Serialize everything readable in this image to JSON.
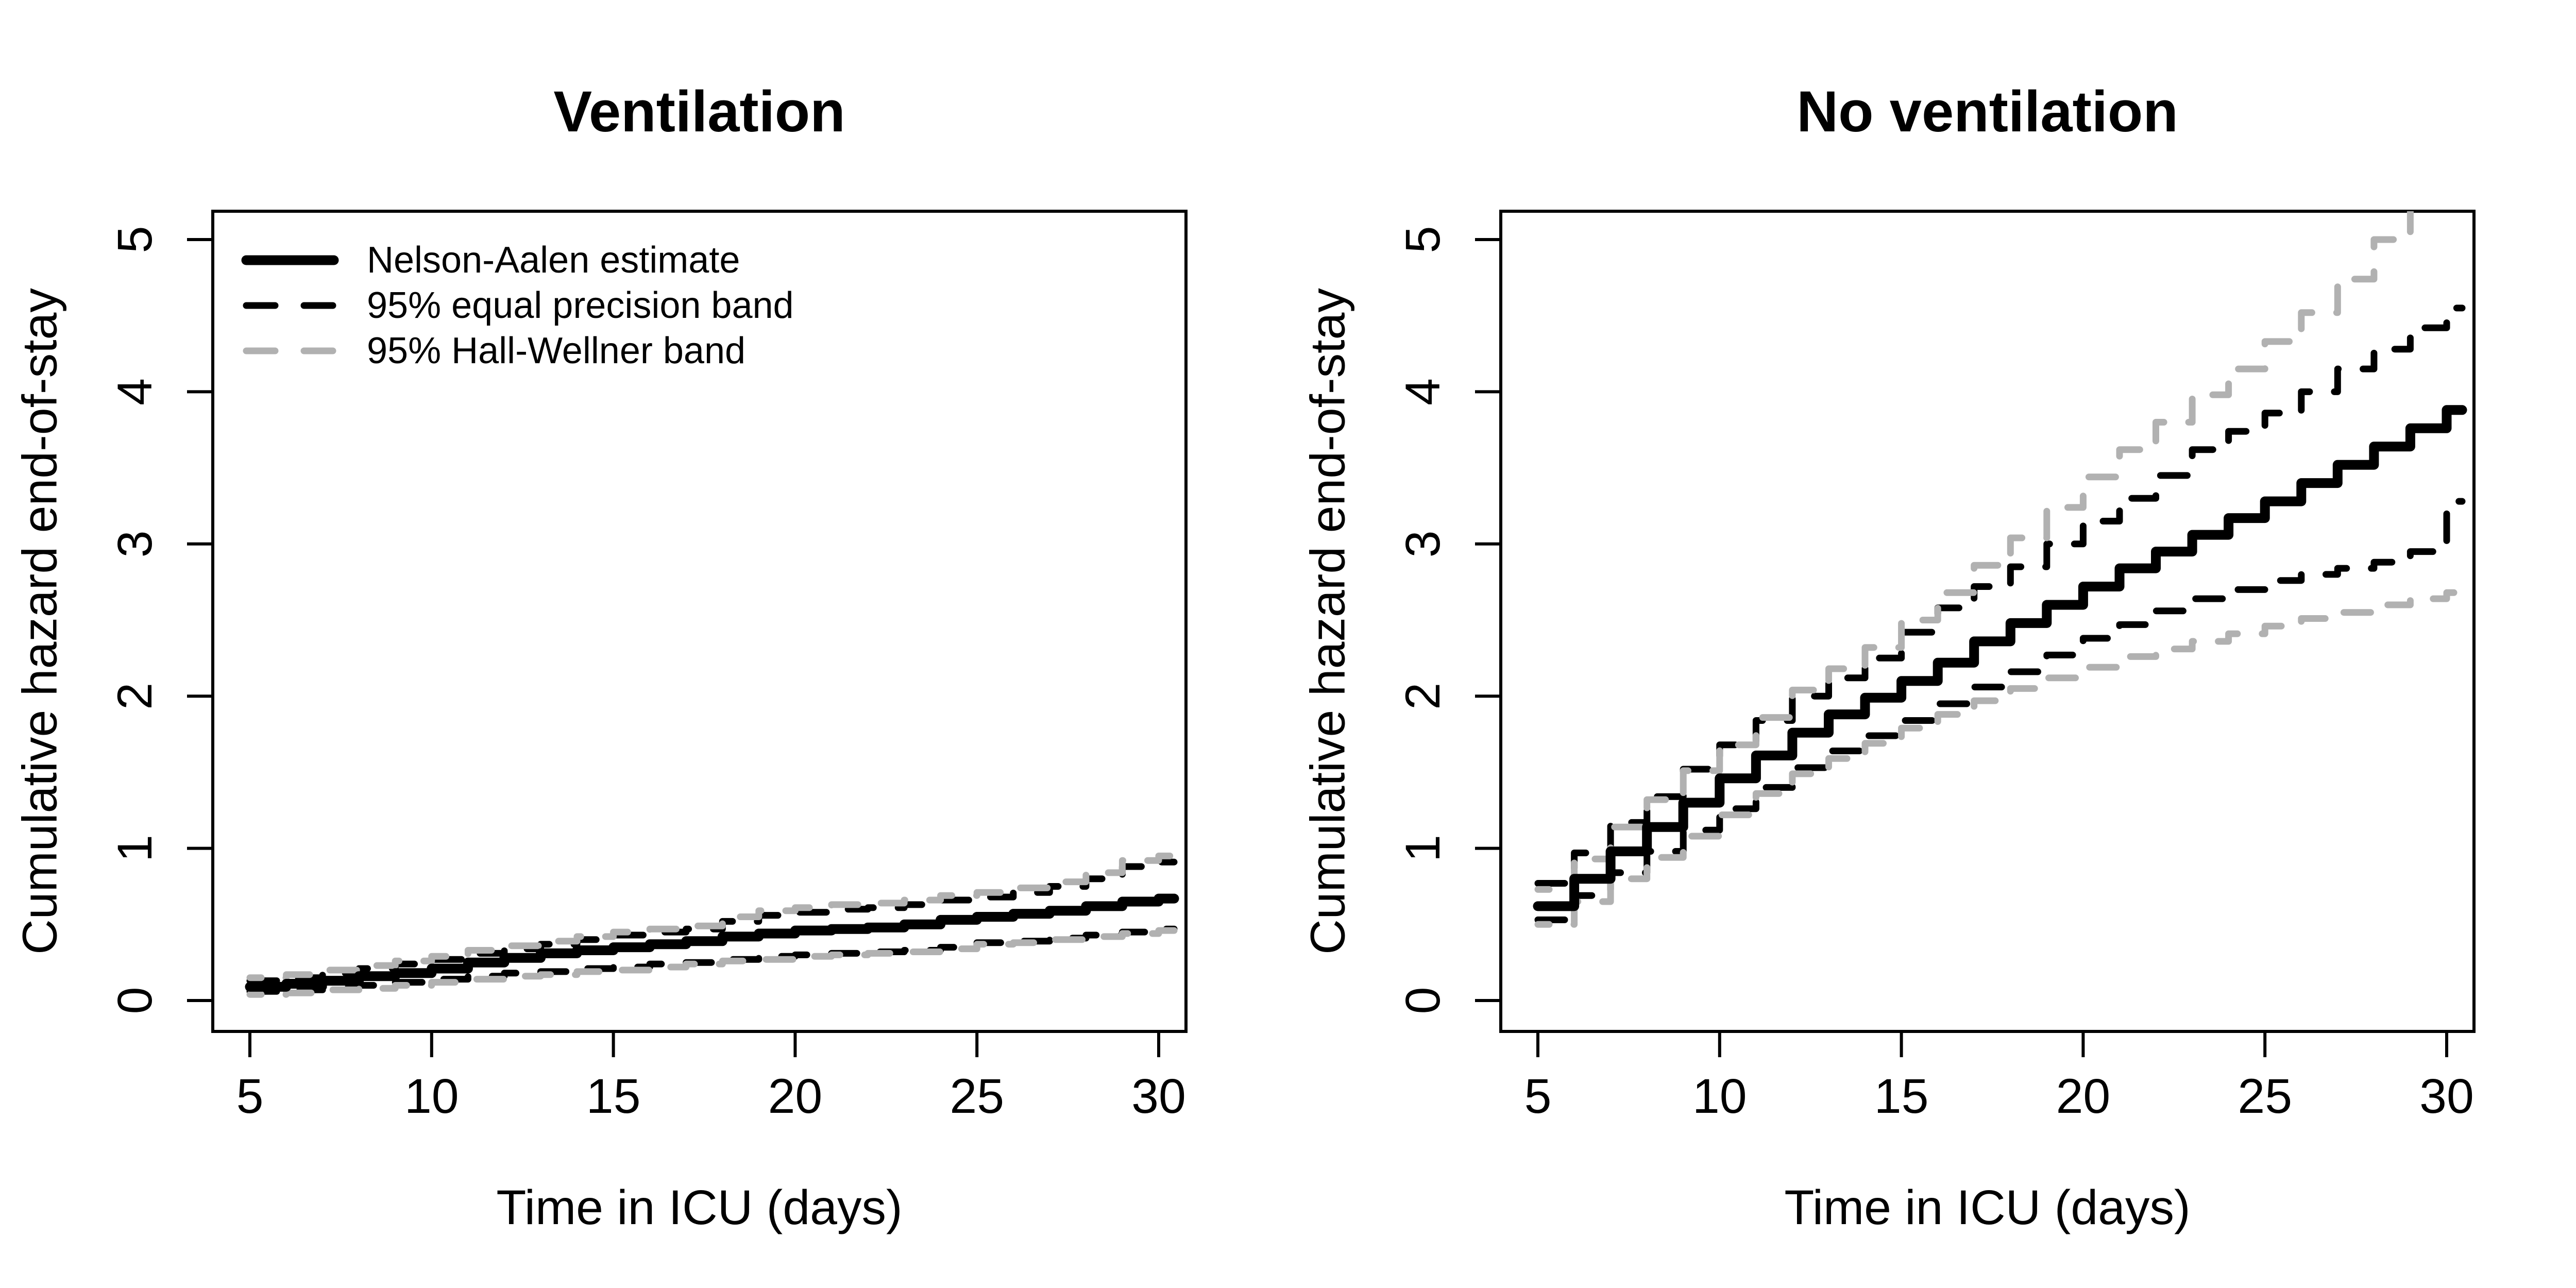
{
  "figure": {
    "background": "#ffffff",
    "panel_count": 2
  },
  "colors": {
    "estimate_line": "#000000",
    "equal_precision_band": "#000000",
    "hall_wellner_band": "#b1b1b1",
    "axis": "#000000",
    "background": "#ffffff"
  },
  "legend": {
    "position": "top-left",
    "items": [
      {
        "label": "Nelson-Aalen estimate",
        "style": "solid",
        "color": "#000000"
      },
      {
        "label": "95% equal precision band",
        "style": "dashed",
        "color": "#000000"
      },
      {
        "label": "95% Hall-Wellner band",
        "style": "dashed",
        "color": "#b1b1b1"
      }
    ]
  },
  "chart_data": [
    {
      "type": "line",
      "step": "post",
      "title": "Ventilation",
      "xlabel": "Time in ICU (days)",
      "ylabel": "Cumulative hazard end-of-stay",
      "x_ticks": [
        5,
        10,
        15,
        20,
        25,
        30
      ],
      "y_ticks": [
        0,
        1,
        2,
        3,
        4,
        5
      ],
      "xlim": [
        4,
        31
      ],
      "ylim": [
        -0.2,
        5.18
      ],
      "grid": false,
      "show_legend": true,
      "x": [
        5,
        6,
        7,
        8,
        9,
        10,
        11,
        12,
        13,
        14,
        15,
        16,
        17,
        18,
        19,
        20,
        21,
        22,
        23,
        24,
        25,
        26,
        27,
        28,
        29,
        30
      ],
      "series": [
        {
          "name": "Nelson-Aalen estimate",
          "role": "estimate",
          "style": "solid",
          "color": "#000000",
          "values": [
            0.09,
            0.11,
            0.13,
            0.16,
            0.18,
            0.21,
            0.25,
            0.28,
            0.31,
            0.33,
            0.35,
            0.37,
            0.39,
            0.42,
            0.44,
            0.46,
            0.47,
            0.48,
            0.5,
            0.53,
            0.55,
            0.57,
            0.59,
            0.62,
            0.65,
            0.67
          ]
        },
        {
          "name": "95% equal precision band (upper)",
          "role": "ep-upper",
          "style": "dashed",
          "color": "#000000",
          "values": [
            0.13,
            0.15,
            0.18,
            0.21,
            0.24,
            0.27,
            0.31,
            0.34,
            0.37,
            0.4,
            0.43,
            0.45,
            0.47,
            0.52,
            0.56,
            0.58,
            0.6,
            0.61,
            0.63,
            0.66,
            0.68,
            0.71,
            0.75,
            0.8,
            0.88,
            0.91
          ]
        },
        {
          "name": "95% equal precision band (lower)",
          "role": "ep-lower",
          "style": "dashed",
          "color": "#000000",
          "values": [
            0.06,
            0.07,
            0.09,
            0.1,
            0.12,
            0.14,
            0.16,
            0.18,
            0.19,
            0.21,
            0.22,
            0.24,
            0.25,
            0.27,
            0.29,
            0.3,
            0.31,
            0.32,
            0.33,
            0.35,
            0.38,
            0.39,
            0.41,
            0.43,
            0.45,
            0.47
          ]
        },
        {
          "name": "95% Hall-Wellner band (upper)",
          "role": "hw-upper",
          "style": "dashed",
          "color": "#b1b1b1",
          "values": [
            0.15,
            0.17,
            0.2,
            0.23,
            0.26,
            0.29,
            0.33,
            0.36,
            0.39,
            0.42,
            0.45,
            0.47,
            0.49,
            0.55,
            0.59,
            0.61,
            0.63,
            0.64,
            0.66,
            0.69,
            0.71,
            0.74,
            0.78,
            0.84,
            0.92,
            0.95
          ]
        },
        {
          "name": "95% Hall-Wellner band (lower)",
          "role": "hw-lower",
          "style": "dashed",
          "color": "#b1b1b1",
          "values": [
            0.04,
            0.05,
            0.07,
            0.08,
            0.1,
            0.12,
            0.14,
            0.16,
            0.17,
            0.19,
            0.2,
            0.22,
            0.24,
            0.26,
            0.27,
            0.29,
            0.3,
            0.31,
            0.32,
            0.34,
            0.37,
            0.38,
            0.4,
            0.42,
            0.44,
            0.46
          ]
        }
      ]
    },
    {
      "type": "line",
      "step": "post",
      "title": "No ventilation",
      "xlabel": "Time in ICU (days)",
      "ylabel": "Cumulative hazard end-of-stay",
      "x_ticks": [
        5,
        10,
        15,
        20,
        25,
        30
      ],
      "y_ticks": [
        0,
        1,
        2,
        3,
        4,
        5
      ],
      "xlim": [
        4,
        31
      ],
      "ylim": [
        -0.2,
        5.18
      ],
      "grid": false,
      "show_legend": false,
      "x": [
        5,
        6,
        7,
        8,
        9,
        10,
        11,
        12,
        13,
        14,
        15,
        16,
        17,
        18,
        19,
        20,
        21,
        22,
        23,
        24,
        25,
        26,
        27,
        28,
        29,
        30
      ],
      "series": [
        {
          "name": "Nelson-Aalen estimate",
          "role": "estimate",
          "style": "solid",
          "color": "#000000",
          "values": [
            0.62,
            0.8,
            0.98,
            1.14,
            1.3,
            1.46,
            1.61,
            1.76,
            1.88,
            1.99,
            2.1,
            2.22,
            2.36,
            2.48,
            2.6,
            2.72,
            2.84,
            2.95,
            3.06,
            3.17,
            3.28,
            3.4,
            3.52,
            3.64,
            3.76,
            3.88
          ]
        },
        {
          "name": "95% equal precision band (upper)",
          "role": "ep-upper",
          "style": "dashed",
          "color": "#000000",
          "values": [
            0.77,
            0.97,
            1.17,
            1.34,
            1.52,
            1.68,
            1.84,
            2.0,
            2.12,
            2.25,
            2.42,
            2.58,
            2.72,
            2.85,
            3.0,
            3.15,
            3.3,
            3.45,
            3.62,
            3.74,
            3.86,
            4.0,
            4.15,
            4.28,
            4.42,
            4.55
          ]
        },
        {
          "name": "95% equal precision band (lower)",
          "role": "ep-lower",
          "style": "dashed",
          "color": "#000000",
          "values": [
            0.53,
            0.69,
            0.84,
            0.98,
            1.12,
            1.26,
            1.4,
            1.53,
            1.64,
            1.74,
            1.84,
            1.95,
            2.06,
            2.16,
            2.27,
            2.38,
            2.47,
            2.56,
            2.64,
            2.7,
            2.76,
            2.8,
            2.84,
            2.88,
            2.95,
            3.28
          ]
        },
        {
          "name": "95% Hall-Wellner band (upper)",
          "role": "hw-upper",
          "style": "dashed",
          "color": "#b1b1b1",
          "values": [
            0.73,
            0.93,
            1.14,
            1.32,
            1.51,
            1.68,
            1.86,
            2.04,
            2.18,
            2.32,
            2.5,
            2.68,
            2.86,
            3.04,
            3.24,
            3.44,
            3.62,
            3.8,
            3.98,
            4.15,
            4.33,
            4.52,
            4.74,
            5.0,
            5.25,
            5.5
          ]
        },
        {
          "name": "95% Hall-Wellner band (lower)",
          "role": "hw-lower",
          "style": "dashed",
          "color": "#b1b1b1",
          "values": [
            0.5,
            0.65,
            0.8,
            0.94,
            1.08,
            1.22,
            1.36,
            1.49,
            1.59,
            1.69,
            1.79,
            1.88,
            1.97,
            2.05,
            2.12,
            2.19,
            2.26,
            2.31,
            2.36,
            2.41,
            2.46,
            2.51,
            2.55,
            2.6,
            2.64,
            2.68
          ]
        }
      ]
    }
  ]
}
